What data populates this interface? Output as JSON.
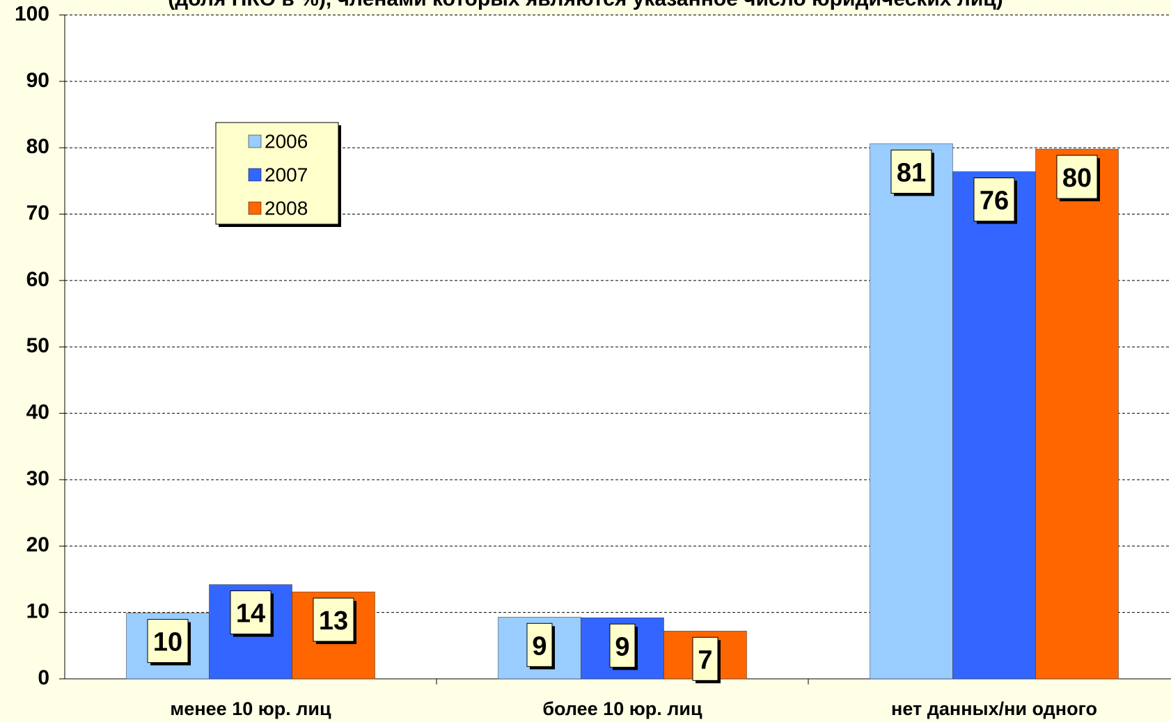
{
  "chart_data": {
    "type": "bar",
    "title": "(доля НКО в %), членами которых являются указанное число юридических лиц)",
    "categories": [
      "менее 10 юр. лиц",
      "более 10 юр. лиц",
      "нет данных/ни одного"
    ],
    "series": [
      {
        "name": "2006",
        "color": "#99ccff",
        "values": [
          9.9,
          9.3,
          80.6
        ],
        "value_labels": [
          "10",
          "9",
          "81"
        ]
      },
      {
        "name": "2007",
        "color": "#3366ff",
        "values": [
          14.2,
          9.2,
          76.4
        ],
        "value_labels": [
          "14",
          "9",
          "76"
        ]
      },
      {
        "name": "2008",
        "color": "#ff6600",
        "values": [
          13.1,
          7.2,
          79.8
        ],
        "value_labels": [
          "13",
          "7",
          "80"
        ]
      }
    ],
    "ylim": [
      0,
      100
    ],
    "yticks": [
      0,
      10,
      20,
      30,
      40,
      50,
      60,
      70,
      80,
      90,
      100
    ],
    "grid": true,
    "legend": "upper left"
  }
}
